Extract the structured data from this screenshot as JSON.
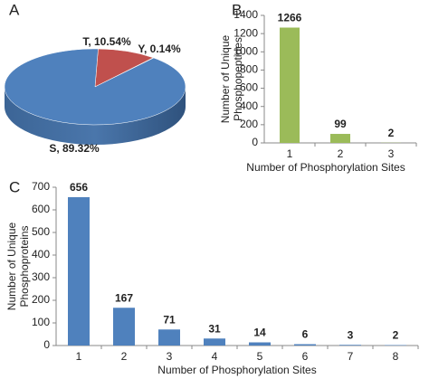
{
  "chart_data": [
    {
      "type": "pie",
      "panel_label": "A",
      "categories": [
        "S",
        "T",
        "Y"
      ],
      "values": [
        89.32,
        10.54,
        0.14
      ],
      "value_labels": [
        "S, 89.32%",
        "T, 10.54%",
        "Y, 0.14%"
      ],
      "colors": [
        "#4f81bd",
        "#c0504d",
        "#9bbb59"
      ]
    },
    {
      "type": "bar",
      "panel_label": "B",
      "categories": [
        "1",
        "2",
        "3"
      ],
      "values": [
        1266,
        99,
        2
      ],
      "color": "#9bbb59",
      "xlabel": "Number of Phosphorylation Sites",
      "ylabel": [
        "Number of Unique",
        "Phosphopeptides"
      ],
      "ylim": [
        0,
        1400
      ],
      "yticks": [
        0,
        200,
        400,
        600,
        800,
        1000,
        1200,
        1400
      ]
    },
    {
      "type": "bar",
      "panel_label": "C",
      "categories": [
        "1",
        "2",
        "3",
        "4",
        "5",
        "6",
        "7",
        "8"
      ],
      "values": [
        656,
        167,
        71,
        31,
        14,
        6,
        3,
        2
      ],
      "color": "#4f81bd",
      "xlabel": "Number of Phosphorylation Sites",
      "ylabel": [
        "Number of Unique",
        "Phosphoproteins"
      ],
      "ylim": [
        0,
        700
      ],
      "yticks": [
        0,
        100,
        200,
        300,
        400,
        500,
        600,
        700
      ]
    }
  ]
}
